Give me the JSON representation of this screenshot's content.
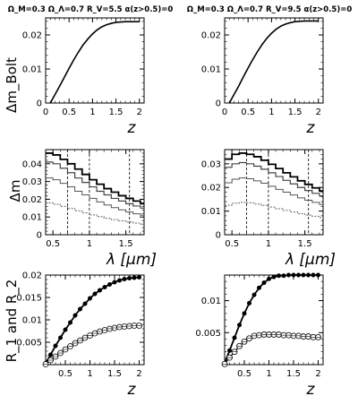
{
  "chart_data": [
    {
      "id": "A1",
      "type": "line",
      "title": "Ω_M=0.3 Ω_Λ=0.7 R_V=5.5 α(z>0.5)=0",
      "xlabel": "z",
      "ylabel": "Δm_Bolt",
      "xlim": [
        0,
        2.1
      ],
      "ylim": [
        0,
        0.025
      ],
      "xticks": [
        0,
        0.5,
        1,
        1.5,
        2
      ],
      "xtick_labels": [
        "0",
        "0.5",
        "1",
        "1.5",
        "2"
      ],
      "yticks": [
        0,
        0.01,
        0.02
      ],
      "ytick_labels": [
        "0",
        "0.01",
        "0.02"
      ],
      "series": [
        {
          "x": [
            0.1,
            0.2,
            0.3,
            0.4,
            0.5,
            0.6,
            0.7,
            0.8,
            0.9,
            1.0,
            1.1,
            1.2,
            1.3,
            1.4,
            1.5,
            1.6,
            1.7,
            1.8,
            1.9,
            2.0
          ],
          "y": [
            0.0,
            0.0025,
            0.005,
            0.0076,
            0.0102,
            0.0127,
            0.015,
            0.0171,
            0.0188,
            0.0203,
            0.0215,
            0.0224,
            0.023,
            0.0234,
            0.0237,
            0.0238,
            0.0239,
            0.0239,
            0.0239,
            0.0239
          ]
        }
      ]
    },
    {
      "id": "A2",
      "type": "line",
      "title": "Ω_M=0.3 Ω_Λ=0.7 R_V=9.5 α(z>0.5)=0",
      "xlabel": "z",
      "ylabel": "",
      "xlim": [
        0,
        2.1
      ],
      "ylim": [
        0,
        0.025
      ],
      "xticks": [
        0,
        0.5,
        1,
        1.5,
        2
      ],
      "xtick_labels": [
        "0",
        "0.5",
        "1",
        "1.5",
        "2"
      ],
      "yticks": [
        0,
        0.01,
        0.02
      ],
      "ytick_labels": [
        "0",
        "0.01",
        "0.02"
      ],
      "series": [
        {
          "x": [
            0.1,
            0.2,
            0.3,
            0.4,
            0.5,
            0.6,
            0.7,
            0.8,
            0.9,
            1.0,
            1.1,
            1.2,
            1.3,
            1.4,
            1.5,
            1.6,
            1.7,
            1.8,
            1.9,
            2.0
          ],
          "y": [
            0.0,
            0.0025,
            0.005,
            0.0077,
            0.0103,
            0.0128,
            0.0151,
            0.0172,
            0.019,
            0.0205,
            0.0217,
            0.0226,
            0.0232,
            0.0236,
            0.0239,
            0.024,
            0.0241,
            0.0241,
            0.0241,
            0.0241
          ]
        }
      ]
    },
    {
      "id": "B1",
      "type": "line",
      "xlabel": "λ [μm]",
      "ylabel": "Δm",
      "xlim": [
        0.4,
        1.75
      ],
      "ylim": [
        0,
        0.048
      ],
      "xticks": [
        0.5,
        1,
        1.5
      ],
      "xtick_labels": [
        "0.5",
        "1",
        "1.5"
      ],
      "yticks": [
        0,
        0.01,
        0.02,
        0.03,
        0.04
      ],
      "ytick_labels": [
        "0",
        "0.01",
        "0.02",
        "0.03",
        "0.04"
      ],
      "vlines": [
        0.7,
        1.0,
        1.55
      ],
      "x": [
        0.4,
        0.5,
        0.6,
        0.7,
        0.8,
        0.9,
        1.0,
        1.1,
        1.2,
        1.3,
        1.4,
        1.5,
        1.6,
        1.7
      ],
      "series": [
        {
          "y": [
            0.046,
            0.045,
            0.0425,
            0.04,
            0.037,
            0.034,
            0.031,
            0.0285,
            0.026,
            0.024,
            0.022,
            0.0205,
            0.019,
            0.0175
          ]
        },
        {
          "y": [
            0.041,
            0.04,
            0.0375,
            0.035,
            0.032,
            0.0295,
            0.027,
            0.0245,
            0.0225,
            0.0205,
            0.019,
            0.0175,
            0.0162,
            0.015
          ]
        },
        {
          "y": [
            0.032,
            0.031,
            0.029,
            0.027,
            0.0245,
            0.0225,
            0.0205,
            0.0185,
            0.0168,
            0.0153,
            0.014,
            0.0128,
            0.0118,
            0.011
          ]
        },
        {
          "y": [
            0.018,
            0.0172,
            0.016,
            0.0148,
            0.0135,
            0.0123,
            0.0112,
            0.0102,
            0.0093,
            0.0085,
            0.0078,
            0.0072,
            0.0066,
            0.006
          ]
        }
      ]
    },
    {
      "id": "B2",
      "type": "line",
      "xlabel": "λ [μm]",
      "ylabel": "",
      "xlim": [
        0.4,
        1.75
      ],
      "ylim": [
        0,
        0.036
      ],
      "xticks": [
        0.5,
        1,
        1.5
      ],
      "xtick_labels": [
        "0.5",
        "1",
        "1.5"
      ],
      "yticks": [
        0,
        0.01,
        0.02,
        0.03
      ],
      "ytick_labels": [
        "0",
        "0.01",
        "0.02",
        "0.03"
      ],
      "vlines": [
        0.7,
        1.0,
        1.55
      ],
      "x": [
        0.4,
        0.5,
        0.6,
        0.7,
        0.8,
        0.9,
        1.0,
        1.1,
        1.2,
        1.3,
        1.4,
        1.5,
        1.6,
        1.7
      ],
      "series": [
        {
          "y": [
            0.032,
            0.034,
            0.0345,
            0.034,
            0.033,
            0.0315,
            0.0298,
            0.028,
            0.0262,
            0.0245,
            0.0228,
            0.0213,
            0.0198,
            0.0185
          ]
        },
        {
          "y": [
            0.0285,
            0.03,
            0.0305,
            0.03,
            0.029,
            0.0277,
            0.0262,
            0.0246,
            0.023,
            0.0215,
            0.02,
            0.0187,
            0.0175,
            0.0164
          ]
        },
        {
          "y": [
            0.022,
            0.0235,
            0.024,
            0.0237,
            0.0228,
            0.0218,
            0.0205,
            0.0192,
            0.018,
            0.0168,
            0.0156,
            0.0146,
            0.0137,
            0.0128
          ]
        },
        {
          "y": [
            0.0125,
            0.0133,
            0.0137,
            0.0135,
            0.013,
            0.0124,
            0.0117,
            0.011,
            0.0103,
            0.0096,
            0.0089,
            0.0083,
            0.0078,
            0.0073
          ]
        }
      ]
    },
    {
      "id": "C1",
      "type": "line",
      "xlabel": "z",
      "ylabel": "R_1 and R_2",
      "xlim": [
        0.1,
        2.1
      ],
      "ylim": [
        0,
        0.02
      ],
      "xticks": [
        0.5,
        1,
        1.5,
        2
      ],
      "xtick_labels": [
        "0.5",
        "1",
        "1.5",
        "2"
      ],
      "yticks": [
        0.005,
        0.01,
        0.015,
        0.02
      ],
      "ytick_labels": [
        "0.005",
        "0.01",
        "0.015",
        "0.02"
      ],
      "x": [
        0.1,
        0.2,
        0.3,
        0.4,
        0.5,
        0.6,
        0.7,
        0.8,
        0.9,
        1.0,
        1.1,
        1.2,
        1.3,
        1.4,
        1.5,
        1.6,
        1.7,
        1.8,
        1.9,
        2.0
      ],
      "series": [
        {
          "marker": "filled",
          "y": [
            0.0003,
            0.0022,
            0.0042,
            0.006,
            0.0078,
            0.0094,
            0.011,
            0.0124,
            0.0136,
            0.0148,
            0.0158,
            0.0166,
            0.0173,
            0.0179,
            0.0184,
            0.0188,
            0.0191,
            0.0193,
            0.0194,
            0.0195
          ]
        },
        {
          "marker": "open",
          "y": [
            0.0001,
            0.001,
            0.0018,
            0.0026,
            0.0034,
            0.0041,
            0.0048,
            0.0054,
            0.006,
            0.0065,
            0.007,
            0.0074,
            0.0077,
            0.008,
            0.0082,
            0.0084,
            0.0085,
            0.0086,
            0.0087,
            0.0087
          ]
        }
      ]
    },
    {
      "id": "C2",
      "type": "line",
      "xlabel": "z",
      "ylabel": "",
      "xlim": [
        0.1,
        2.1
      ],
      "ylim": [
        0,
        0.014
      ],
      "xticks": [
        0.5,
        1,
        1.5,
        2
      ],
      "xtick_labels": [
        "0.5",
        "1",
        "1.5",
        "2"
      ],
      "yticks": [
        0.005,
        0.01
      ],
      "ytick_labels": [
        "0.005",
        "0.01"
      ],
      "x": [
        0.1,
        0.2,
        0.3,
        0.4,
        0.5,
        0.6,
        0.7,
        0.8,
        0.9,
        1.0,
        1.1,
        1.2,
        1.3,
        1.4,
        1.5,
        1.6,
        1.7,
        1.8,
        1.9,
        2.0
      ],
      "series": [
        {
          "marker": "filled",
          "y": [
            0.0002,
            0.0022,
            0.0042,
            0.0062,
            0.008,
            0.0096,
            0.0109,
            0.012,
            0.0128,
            0.0134,
            0.0137,
            0.0139,
            0.0139,
            0.014,
            0.014,
            0.014,
            0.014,
            0.014,
            0.014,
            0.014
          ]
        },
        {
          "marker": "open",
          "y": [
            0.0001,
            0.0011,
            0.002,
            0.0029,
            0.0036,
            0.0041,
            0.0045,
            0.0046,
            0.0047,
            0.0047,
            0.0047,
            0.0047,
            0.0046,
            0.0046,
            0.0045,
            0.0045,
            0.0044,
            0.0044,
            0.0043,
            0.0043
          ]
        }
      ]
    }
  ]
}
